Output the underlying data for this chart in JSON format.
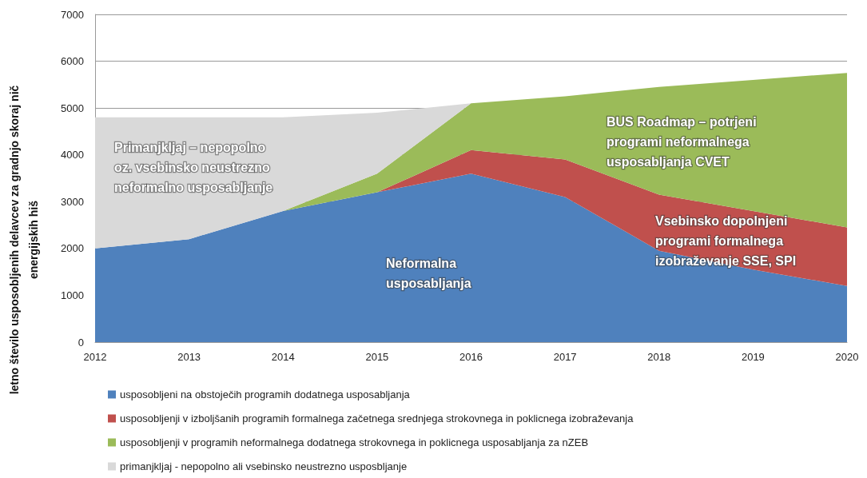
{
  "chart_data": {
    "type": "area",
    "stacked": true,
    "ylabel": "letno število usposobljenih delavcev za gradnjo skoraj nič\nenergijskih hiš",
    "categories": [
      "2012",
      "2013",
      "2014",
      "2015",
      "2016",
      "2017",
      "2018",
      "2019",
      "2020"
    ],
    "ylim": [
      0,
      7000
    ],
    "yticks": [
      0,
      1000,
      2000,
      3000,
      4000,
      5000,
      6000,
      7000
    ],
    "grid": "y",
    "legend": "bottom",
    "marker": "none",
    "series": [
      {
        "name": "usposobljeni na obstoječih programih dodatnega usposabljanja",
        "color": "#4f81bd",
        "values": [
          2000,
          2200,
          2800,
          3200,
          3600,
          3100,
          1950,
          1550,
          1200
        ]
      },
      {
        "name": "usposobljenji v izboljšanih programih formalnega začetnega srednjega strokovnega in poklicnega izobraževanja",
        "color": "#c0504d",
        "values": [
          0,
          0,
          0,
          0,
          500,
          800,
          1200,
          1250,
          1250
        ]
      },
      {
        "name": "usposobljenji v programih neformalnega dodatnega strokovnega in poklicnega usposabljanja za nZEB",
        "color": "#9bbb59",
        "values": [
          0,
          0,
          0,
          400,
          1000,
          1350,
          2300,
          2800,
          3300
        ]
      },
      {
        "name": "primanjkljaj - nepopolno ali vsebinsko neustrezno usposbljanje",
        "color": "#d9d9d9",
        "values": [
          2800,
          2600,
          2000,
          1300,
          0,
          null,
          null,
          null,
          null
        ]
      }
    ],
    "annotations": [
      "Primanjkljaj – nepopolno\noz. vsebinsko neustrezno\nneformalno usposabljanje",
      "Neformalna\nusposabljanja",
      "BUS Roadmap – potrjeni\nprogrami neformalnega\nusposabljanja CVET",
      "Vsebinsko dopolnjeni\nprogrami formalnega\nizobraževanje SSE, SPI"
    ]
  }
}
